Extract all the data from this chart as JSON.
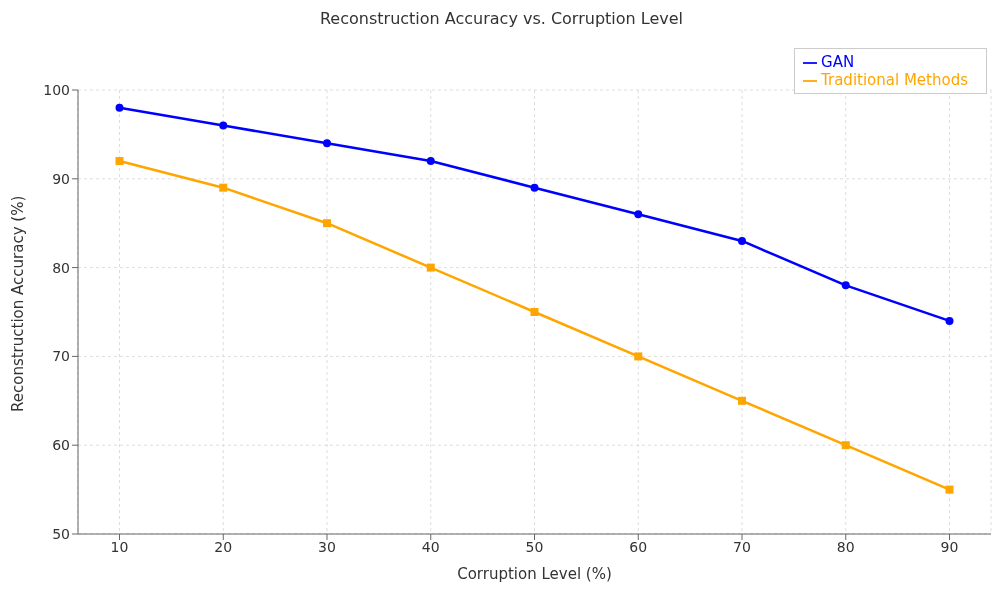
{
  "chart_data": {
    "type": "line",
    "title": "Reconstruction Accuracy vs. Corruption Level",
    "xlabel": "Corruption Level (%)",
    "ylabel": "Reconstruction Accuracy (%)",
    "x": [
      10,
      20,
      30,
      40,
      50,
      60,
      70,
      80,
      90
    ],
    "series": [
      {
        "name": "GAN",
        "color": "#0000ff",
        "marker": "circle",
        "values": [
          98,
          96,
          94,
          92,
          89,
          86,
          83,
          78,
          74
        ]
      },
      {
        "name": "Traditional Methods",
        "color": "#ffa500",
        "marker": "square",
        "values": [
          92,
          89,
          85,
          80,
          75,
          70,
          65,
          60,
          55
        ]
      }
    ],
    "xlim": [
      6,
      94
    ],
    "xticks": [
      10,
      20,
      30,
      40,
      50,
      60,
      70,
      80,
      90
    ],
    "ylim": [
      50,
      100
    ],
    "yticks": [
      50,
      60,
      70,
      80,
      90,
      100
    ],
    "grid": true,
    "legend": "top right",
    "line_style": "solid"
  }
}
